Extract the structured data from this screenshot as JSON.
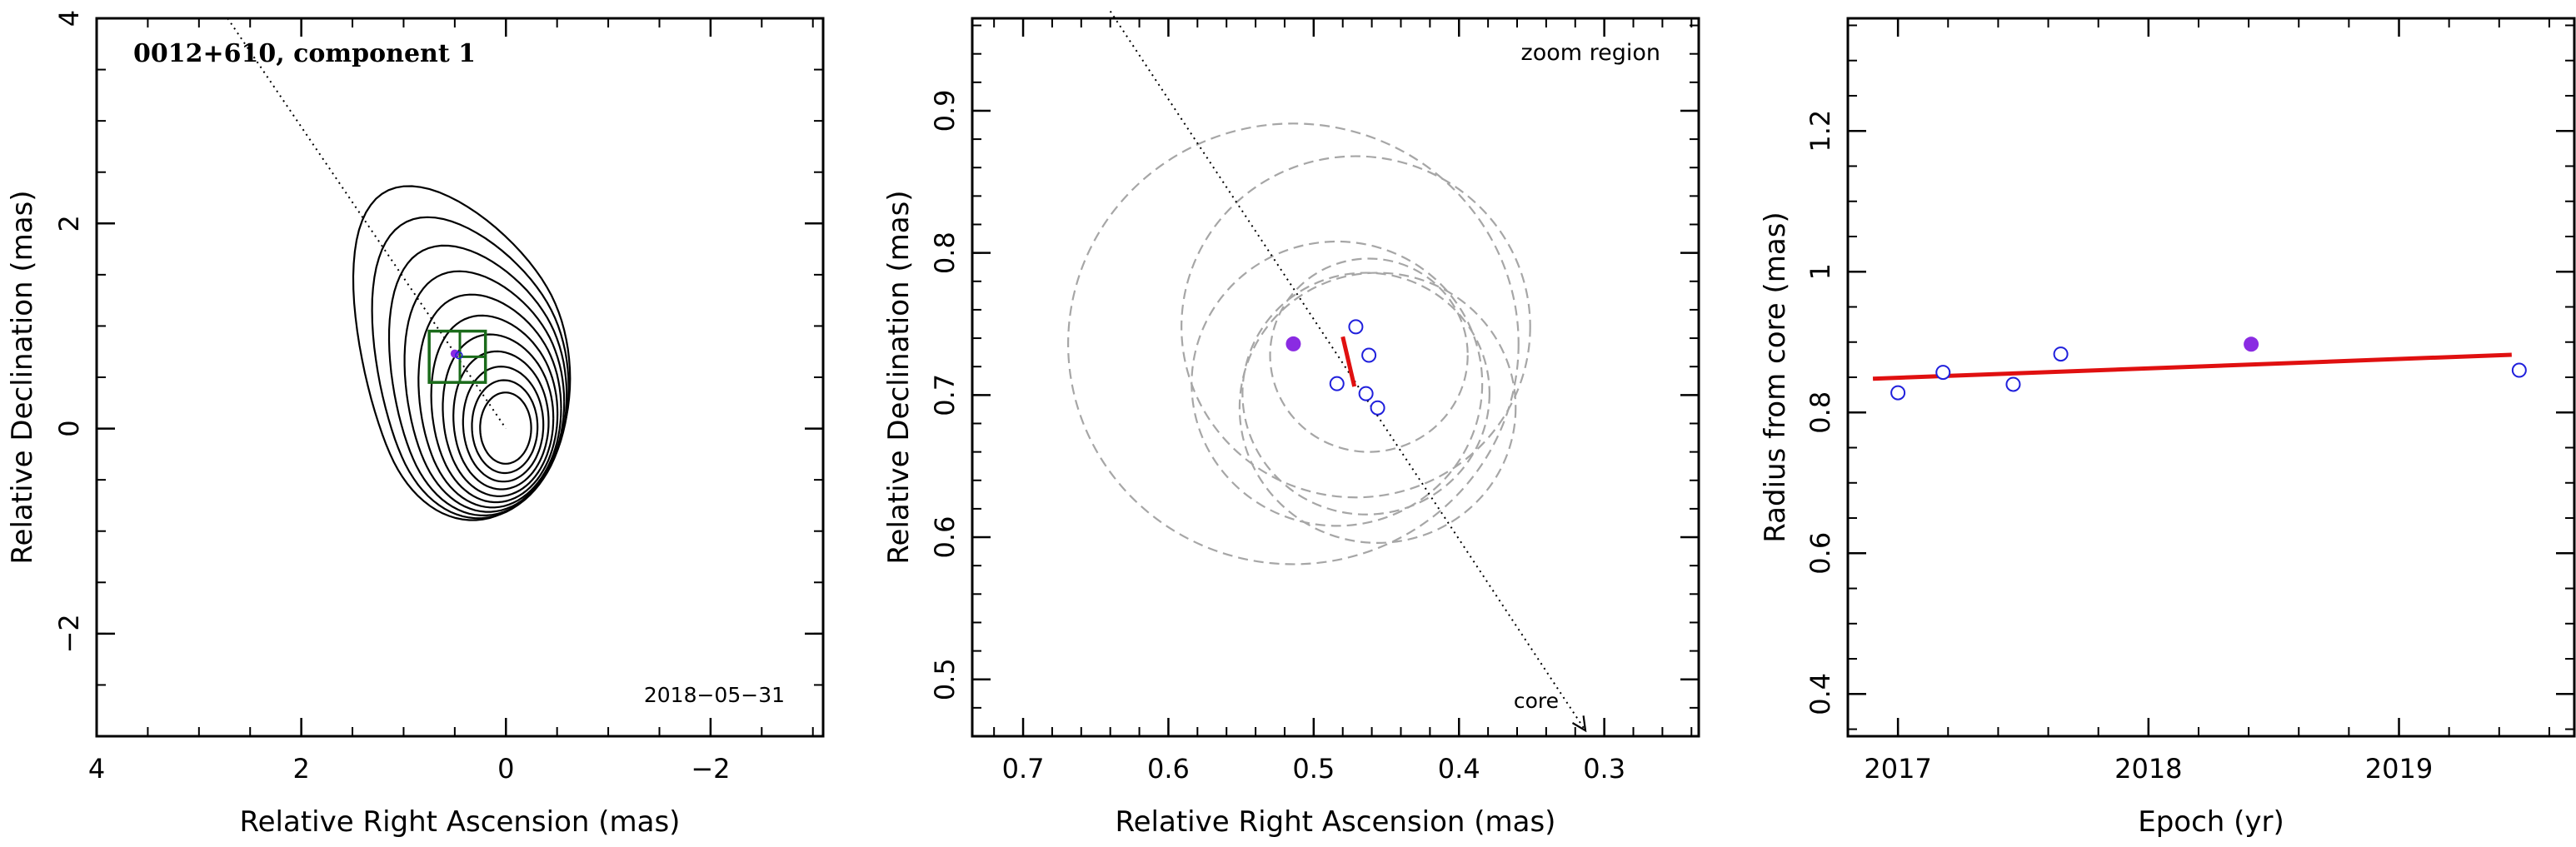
{
  "chart_data": [
    {
      "type": "contour",
      "title": "0012+610, component 1",
      "epoch_label": "2018−05−31",
      "xlabel": "Relative Right Ascension (mas)",
      "ylabel": "Relative Declination (mas)",
      "xlim": [
        4,
        -3.1
      ],
      "ylim": [
        -3,
        4
      ],
      "x_ticks": [
        4,
        2,
        0,
        -2
      ],
      "x_tick_labels": [
        "4",
        "2",
        "0",
        "−2"
      ],
      "y_ticks": [
        -2,
        0,
        2,
        4
      ],
      "y_tick_labels": [
        "−2",
        "0",
        "2",
        "4"
      ],
      "contour_levels": 11,
      "contour_color": "#000000",
      "box_color": "#1a6b1a",
      "zoom_box": {
        "x": [
          0.2,
          0.75
        ],
        "y": [
          0.45,
          0.95
        ]
      },
      "core_position": [
        0,
        0
      ],
      "component_position": [
        0.5,
        0.73
      ],
      "jet_axis": {
        "from": [
          2.72,
          4.0
        ],
        "to": [
          0,
          0
        ]
      }
    },
    {
      "type": "scatter",
      "annotation_zoom": "zoom region",
      "annotation_core": "core",
      "xlabel": "Relative Right Ascension (mas)",
      "ylabel": "Relative Declination (mas)",
      "xlim": [
        0.735,
        0.235
      ],
      "ylim": [
        0.46,
        0.965
      ],
      "x_ticks": [
        0.7,
        0.6,
        0.5,
        0.4,
        0.3
      ],
      "x_tick_labels": [
        "0.7",
        "0.6",
        "0.5",
        "0.4",
        "0.3"
      ],
      "y_ticks": [
        0.5,
        0.6,
        0.7,
        0.8,
        0.9
      ],
      "y_tick_labels": [
        "0.5",
        "0.6",
        "0.7",
        "0.8",
        "0.9"
      ],
      "open_points": [
        {
          "x": 0.471,
          "y": 0.748
        },
        {
          "x": 0.462,
          "y": 0.728
        },
        {
          "x": 0.484,
          "y": 0.708
        },
        {
          "x": 0.464,
          "y": 0.701
        },
        {
          "x": 0.456,
          "y": 0.691
        }
      ],
      "highlight_point": {
        "x": 0.514,
        "y": 0.736
      },
      "fit_segment": {
        "from": [
          0.48,
          0.741
        ],
        "to": [
          0.472,
          0.706
        ]
      },
      "circles": [
        {
          "cx": 0.514,
          "cy": 0.736,
          "r": 0.155
        },
        {
          "cx": 0.471,
          "cy": 0.748,
          "r": 0.12
        },
        {
          "cx": 0.462,
          "cy": 0.728,
          "r": 0.068
        },
        {
          "cx": 0.484,
          "cy": 0.708,
          "r": 0.1
        },
        {
          "cx": 0.464,
          "cy": 0.701,
          "r": 0.085
        },
        {
          "cx": 0.456,
          "cy": 0.691,
          "r": 0.095
        }
      ],
      "open_color": "#1f1fdc",
      "highlight_color": "#8a2be2",
      "fit_color": "#e01010",
      "circle_color": "#a6a6a6"
    },
    {
      "type": "scatter",
      "xlabel": "Epoch (yr)",
      "ylabel": "Radius from core (mas)",
      "xlim": [
        2016.8,
        2019.7
      ],
      "ylim": [
        0.34,
        1.36
      ],
      "x_ticks": [
        2017,
        2018,
        2019
      ],
      "x_tick_labels": [
        "2017",
        "2018",
        "2019"
      ],
      "y_ticks": [
        0.4,
        0.6,
        0.8,
        1.0,
        1.2
      ],
      "y_tick_labels": [
        "0.4",
        "0.6",
        "0.8",
        "1",
        "1.2"
      ],
      "open_points": [
        {
          "x": 2017.0,
          "y": 0.828
        },
        {
          "x": 2017.18,
          "y": 0.857
        },
        {
          "x": 2017.46,
          "y": 0.84
        },
        {
          "x": 2017.65,
          "y": 0.883
        },
        {
          "x": 2019.48,
          "y": 0.86
        }
      ],
      "highlight_point": {
        "x": 2018.41,
        "y": 0.897
      },
      "fit_line": {
        "from": [
          2016.9,
          0.848
        ],
        "to": [
          2019.45,
          0.882
        ]
      },
      "open_color": "#1f1fdc",
      "highlight_color": "#8a2be2",
      "fit_color": "#e01010"
    }
  ]
}
